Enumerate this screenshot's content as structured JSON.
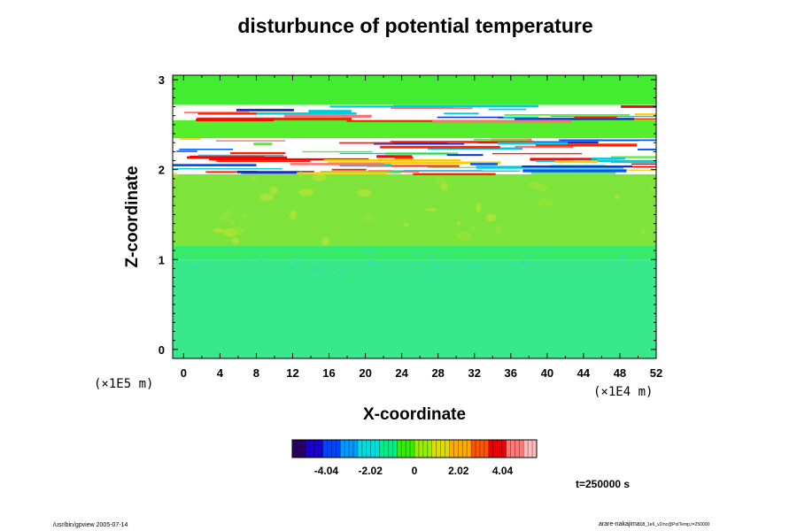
{
  "chart_data": {
    "type": "heatmap",
    "title": "disturbunce of potential temperature",
    "xlabel": "X-coordinate",
    "ylabel": "Z-coordinate",
    "x_unit": "(×1E4 m)",
    "z_unit": "(×1E5 m)",
    "x_ticks": [
      0,
      4,
      8,
      12,
      16,
      20,
      24,
      28,
      32,
      36,
      40,
      44,
      48,
      52
    ],
    "z_ticks": [
      0,
      1,
      2,
      3
    ],
    "xlim": [
      -1.2,
      52
    ],
    "zlim": [
      -0.1,
      3.05
    ],
    "colorbar": {
      "ticks": [
        -4.04,
        -2.02,
        0,
        2.02,
        4.04
      ],
      "tick_labels": [
        "-4.04",
        "-2.02",
        "0",
        "2.02",
        "4.04"
      ],
      "range": [
        -5.6,
        5.6
      ],
      "colors": [
        "#2a0066",
        "#1a00cc",
        "#0044ff",
        "#0099ff",
        "#00dddd",
        "#00ee88",
        "#33ee00",
        "#99ee00",
        "#dddd00",
        "#ffaa00",
        "#ff5500",
        "#ee0000",
        "#ff7777",
        "#ffbbbb"
      ]
    },
    "layers": [
      {
        "z_range": [
          -0.1,
          1.0
        ],
        "value": -0.35,
        "color": "#3ae88c"
      },
      {
        "z_range": [
          1.0,
          1.15
        ],
        "value": -0.15,
        "color": "#38ea6c"
      },
      {
        "z_range": [
          1.15,
          1.95
        ],
        "value": 0.35,
        "color": "#7ee43c"
      },
      {
        "z_range": [
          1.95,
          2.35
        ],
        "value": "saturated (alternating strong positive and negative bands)",
        "color": "#ffffff"
      },
      {
        "z_range": [
          2.35,
          2.55
        ],
        "value": 0.2,
        "color": "#54ee2c"
      },
      {
        "z_range": [
          2.55,
          2.72
        ],
        "value": "saturated bands",
        "color": "#ffffff"
      },
      {
        "z_range": [
          2.72,
          3.05
        ],
        "value": 0.1,
        "color": "#42ec30"
      }
    ],
    "grid": false
  },
  "annotations": {
    "time": "t=250000 s",
    "footer_left": "/usr/bin/gpview 2005-07-14",
    "footer_right_main": "arare-nakajima",
    "footer_right_small": "08_1e6_v2/nc@PotTemp,t=250000"
  },
  "colors": {
    "frame": "#000000",
    "background": "#ffffff"
  }
}
